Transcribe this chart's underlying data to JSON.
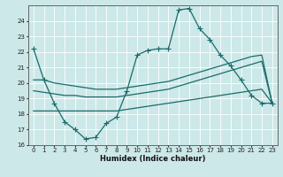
{
  "xlabel": "Humidex (Indice chaleur)",
  "bg_color": "#cce8e8",
  "grid_color": "#ffffff",
  "line_color": "#1a6b6b",
  "xlim": [
    0,
    23
  ],
  "ylim": [
    16,
    25
  ],
  "yticks": [
    16,
    17,
    18,
    19,
    20,
    21,
    22,
    23,
    24
  ],
  "xticks": [
    0,
    1,
    2,
    3,
    4,
    5,
    6,
    7,
    8,
    9,
    10,
    11,
    12,
    13,
    14,
    15,
    16,
    17,
    18,
    19,
    20,
    21,
    22,
    23
  ],
  "main_x": [
    0,
    1,
    2,
    3,
    4,
    5,
    6,
    7,
    8,
    9,
    10,
    11,
    12,
    13,
    14,
    15,
    16,
    17,
    18,
    19,
    20,
    21,
    22,
    23
  ],
  "main_y": [
    22.2,
    20.2,
    18.7,
    17.5,
    17.0,
    16.4,
    16.5,
    17.4,
    17.8,
    19.5,
    21.8,
    22.1,
    22.2,
    22.2,
    24.7,
    24.8,
    23.5,
    22.8,
    21.8,
    21.1,
    20.2,
    19.2,
    18.7,
    18.7
  ],
  "line2_x": [
    0,
    1,
    2,
    3,
    4,
    5,
    6,
    7,
    8,
    9,
    10,
    11,
    12,
    13,
    14,
    15,
    16,
    17,
    18,
    19,
    20,
    21,
    22,
    23
  ],
  "line2_y": [
    20.2,
    20.2,
    20.0,
    19.9,
    19.8,
    19.7,
    19.6,
    19.6,
    19.6,
    19.7,
    19.8,
    19.9,
    20.0,
    20.1,
    20.3,
    20.5,
    20.7,
    20.9,
    21.1,
    21.3,
    21.5,
    21.7,
    21.8,
    18.7
  ],
  "line3_x": [
    0,
    1,
    2,
    3,
    4,
    5,
    6,
    7,
    8,
    9,
    10,
    11,
    12,
    13,
    14,
    15,
    16,
    17,
    18,
    19,
    20,
    21,
    22,
    23
  ],
  "line3_y": [
    19.5,
    19.4,
    19.3,
    19.2,
    19.2,
    19.1,
    19.1,
    19.1,
    19.1,
    19.2,
    19.3,
    19.4,
    19.5,
    19.6,
    19.8,
    20.0,
    20.2,
    20.4,
    20.6,
    20.8,
    21.0,
    21.2,
    21.4,
    18.7
  ],
  "line4_x": [
    0,
    1,
    2,
    3,
    4,
    5,
    6,
    7,
    8,
    9,
    10,
    11,
    12,
    13,
    14,
    15,
    16,
    17,
    18,
    19,
    20,
    21,
    22,
    23
  ],
  "line4_y": [
    18.2,
    18.2,
    18.2,
    18.2,
    18.2,
    18.2,
    18.2,
    18.2,
    18.2,
    18.3,
    18.4,
    18.5,
    18.6,
    18.7,
    18.8,
    18.9,
    19.0,
    19.1,
    19.2,
    19.3,
    19.4,
    19.5,
    19.6,
    18.7
  ]
}
